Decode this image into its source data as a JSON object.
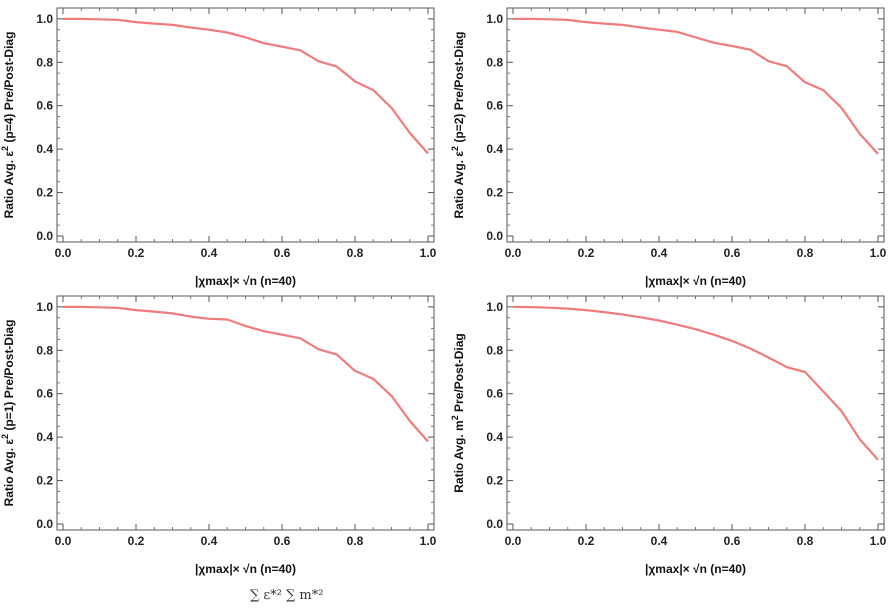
{
  "caption": "∑ ε*² ∑ m*²",
  "chart_data": [
    {
      "type": "line",
      "ylabel_prefix": "Ratio Avg. ε",
      "ylabel_sup": "2",
      "ylabel_suffix": " (p=4) Pre/Post-Diag",
      "xlabel": "|χmax|× √n  (n=40)",
      "xlim": [
        0,
        1
      ],
      "ylim": [
        0,
        1.05
      ],
      "xticks": [
        "0.0",
        "0.2",
        "0.4",
        "0.6",
        "0.8",
        "1.0"
      ],
      "yticks": [
        "0.0",
        "0.2",
        "0.4",
        "0.6",
        "0.8",
        "1.0"
      ],
      "line_color": "#f07b7b",
      "x": [
        0,
        0.05,
        0.1,
        0.15,
        0.2,
        0.25,
        0.3,
        0.35,
        0.4,
        0.45,
        0.5,
        0.55,
        0.6,
        0.65,
        0.7,
        0.75,
        0.8,
        0.85,
        0.9,
        0.95,
        1.0
      ],
      "y": [
        1.0,
        1.0,
        0.998,
        0.995,
        0.985,
        0.978,
        0.972,
        0.96,
        0.95,
        0.937,
        0.915,
        0.888,
        0.872,
        0.855,
        0.805,
        0.78,
        0.712,
        0.672,
        0.59,
        0.475,
        0.38
      ]
    },
    {
      "type": "line",
      "ylabel_prefix": "Ratio Avg. ε",
      "ylabel_sup": "2",
      "ylabel_suffix": " (p=2) Pre/Post-Diag",
      "xlabel": "|χmax|× √n  (n=40)",
      "xlim": [
        0,
        1
      ],
      "ylim": [
        0,
        1.05
      ],
      "xticks": [
        "0.0",
        "0.2",
        "0.4",
        "0.6",
        "0.8",
        "1.0"
      ],
      "yticks": [
        "0.0",
        "0.2",
        "0.4",
        "0.6",
        "0.8",
        "1.0"
      ],
      "line_color": "#f07b7b",
      "x": [
        0,
        0.05,
        0.1,
        0.15,
        0.2,
        0.25,
        0.3,
        0.35,
        0.4,
        0.45,
        0.5,
        0.55,
        0.6,
        0.65,
        0.7,
        0.75,
        0.8,
        0.85,
        0.9,
        0.95,
        1.0
      ],
      "y": [
        1.0,
        1.0,
        0.998,
        0.995,
        0.985,
        0.978,
        0.972,
        0.96,
        0.95,
        0.94,
        0.915,
        0.89,
        0.875,
        0.858,
        0.805,
        0.782,
        0.708,
        0.672,
        0.59,
        0.47,
        0.378
      ]
    },
    {
      "type": "line",
      "ylabel_prefix": "Ratio Avg. ε",
      "ylabel_sup": "2",
      "ylabel_suffix": " (p=1) Pre/Post-Diag",
      "xlabel": "|χmax|× √n  (n=40)",
      "xlim": [
        0,
        1
      ],
      "ylim": [
        0,
        1.05
      ],
      "xticks": [
        "0.0",
        "0.2",
        "0.4",
        "0.6",
        "0.8",
        "1.0"
      ],
      "yticks": [
        "0.0",
        "0.2",
        "0.4",
        "0.6",
        "0.8",
        "1.0"
      ],
      "line_color": "#f07b7b",
      "x": [
        0,
        0.05,
        0.1,
        0.15,
        0.2,
        0.25,
        0.3,
        0.35,
        0.4,
        0.45,
        0.5,
        0.55,
        0.6,
        0.65,
        0.7,
        0.75,
        0.8,
        0.85,
        0.9,
        0.95,
        1.0
      ],
      "y": [
        1.0,
        1.0,
        0.998,
        0.995,
        0.985,
        0.978,
        0.97,
        0.955,
        0.945,
        0.942,
        0.912,
        0.888,
        0.872,
        0.855,
        0.805,
        0.78,
        0.705,
        0.668,
        0.59,
        0.475,
        0.38
      ]
    },
    {
      "type": "line",
      "ylabel_prefix": "Ratio Avg. m",
      "ylabel_sup": "2",
      "ylabel_suffix": " Pre/Post-Diag",
      "xlabel": "|χmax|× √n  (n=40)",
      "xlim": [
        0,
        1
      ],
      "ylim": [
        0,
        1.05
      ],
      "xticks": [
        "0.0",
        "0.2",
        "0.4",
        "0.6",
        "0.8",
        "1.0"
      ],
      "yticks": [
        "0.0",
        "0.2",
        "0.4",
        "0.6",
        "0.8",
        "1.0"
      ],
      "line_color": "#f07b7b",
      "x": [
        0,
        0.05,
        0.1,
        0.15,
        0.2,
        0.25,
        0.3,
        0.35,
        0.4,
        0.45,
        0.5,
        0.55,
        0.6,
        0.65,
        0.7,
        0.75,
        0.8,
        0.85,
        0.9,
        0.95,
        1.0
      ],
      "y": [
        1.0,
        0.999,
        0.996,
        0.992,
        0.985,
        0.976,
        0.965,
        0.952,
        0.937,
        0.918,
        0.897,
        0.872,
        0.843,
        0.808,
        0.767,
        0.722,
        0.7,
        0.61,
        0.52,
        0.39,
        0.295
      ]
    }
  ]
}
